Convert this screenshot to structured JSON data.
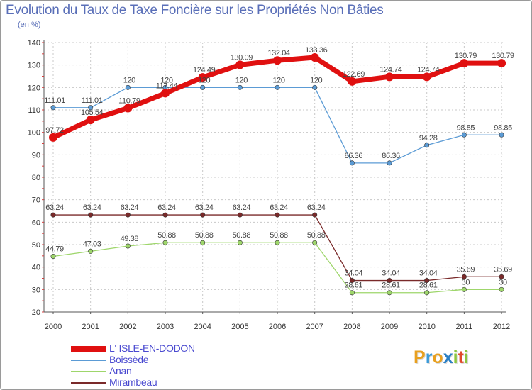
{
  "title": "Evolution du Taux de Taxe Foncière sur les Propriétés Non Bâties",
  "subtitle": "(en %)",
  "logo": {
    "letters": [
      "P",
      "r",
      "o",
      "x",
      "i",
      "t",
      "i"
    ],
    "colors": [
      "#e8a01f",
      "#3a9ad8",
      "#e8a01f",
      "#2a7fc4",
      "#8cc63e",
      "#e04a2a",
      "#8cc63e"
    ]
  },
  "chart_data": {
    "type": "line",
    "title": "Evolution du Taux de Taxe Foncière sur les Propriétés Non Bâties",
    "ylabel": "(en %)",
    "xlabel": "",
    "x": [
      "2000",
      "2001",
      "2002",
      "2003",
      "2004",
      "2005",
      "2006",
      "2007",
      "2008",
      "2009",
      "2010",
      "2011",
      "2012"
    ],
    "ylim": [
      20,
      140
    ],
    "yticks": [
      "20",
      "30",
      "40",
      "50",
      "60",
      "70",
      "80",
      "90",
      "100",
      "110",
      "120",
      "130",
      "140"
    ],
    "series": [
      {
        "name": "Boissède",
        "color": "#5b9bd5",
        "values": [
          111.01,
          111.01,
          120,
          120,
          120,
          120,
          120,
          120,
          86.36,
          86.36,
          94.28,
          98.85,
          98.85
        ],
        "labels": [
          "111.01",
          "111.01",
          "120",
          "120",
          "120",
          "120",
          "120",
          "120",
          "86.36",
          "86.36",
          "94.28",
          "98.85",
          "98.85"
        ]
      },
      {
        "name": "Anan",
        "color": "#9ed66b",
        "values": [
          44.79,
          47.03,
          49.38,
          50.88,
          50.88,
          50.88,
          50.88,
          50.88,
          28.61,
          28.61,
          28.61,
          30,
          30
        ],
        "labels": [
          "44.79",
          "47.03",
          "49.38",
          "50.88",
          "50.88",
          "50.88",
          "50.88",
          "50.88",
          "28.61",
          "28.61",
          "28.61",
          "30",
          "30"
        ]
      },
      {
        "name": "Mirambeau",
        "color": "#7a2a2a",
        "values": [
          63.24,
          63.24,
          63.24,
          63.24,
          63.24,
          63.24,
          63.24,
          63.24,
          34.04,
          34.04,
          34.04,
          35.69,
          35.69
        ],
        "labels": [
          "63.24",
          "63.24",
          "63.24",
          "63.24",
          "63.24",
          "63.24",
          "63.24",
          "63.24",
          "34.04",
          "34.04",
          "34.04",
          "35.69",
          "35.69"
        ]
      },
      {
        "name": "L' ISLE-EN-DODON",
        "color": "#e01010",
        "bold": true,
        "values": [
          97.72,
          105.54,
          110.79,
          117.44,
          124.49,
          130.09,
          132.04,
          133.36,
          122.69,
          124.74,
          124.74,
          130.79,
          130.79
        ],
        "labels": [
          "97.72",
          "105.54",
          "110.79",
          "117.44",
          "124.49",
          "130.09",
          "132.04",
          "133.36",
          "122.69",
          "124.74",
          "124.74",
          "130.79",
          "130.79"
        ]
      }
    ],
    "legend_order": [
      "L' ISLE-EN-DODON",
      "Boissède",
      "Anan",
      "Mirambeau"
    ],
    "grid": true,
    "legend": "bottom-left"
  }
}
